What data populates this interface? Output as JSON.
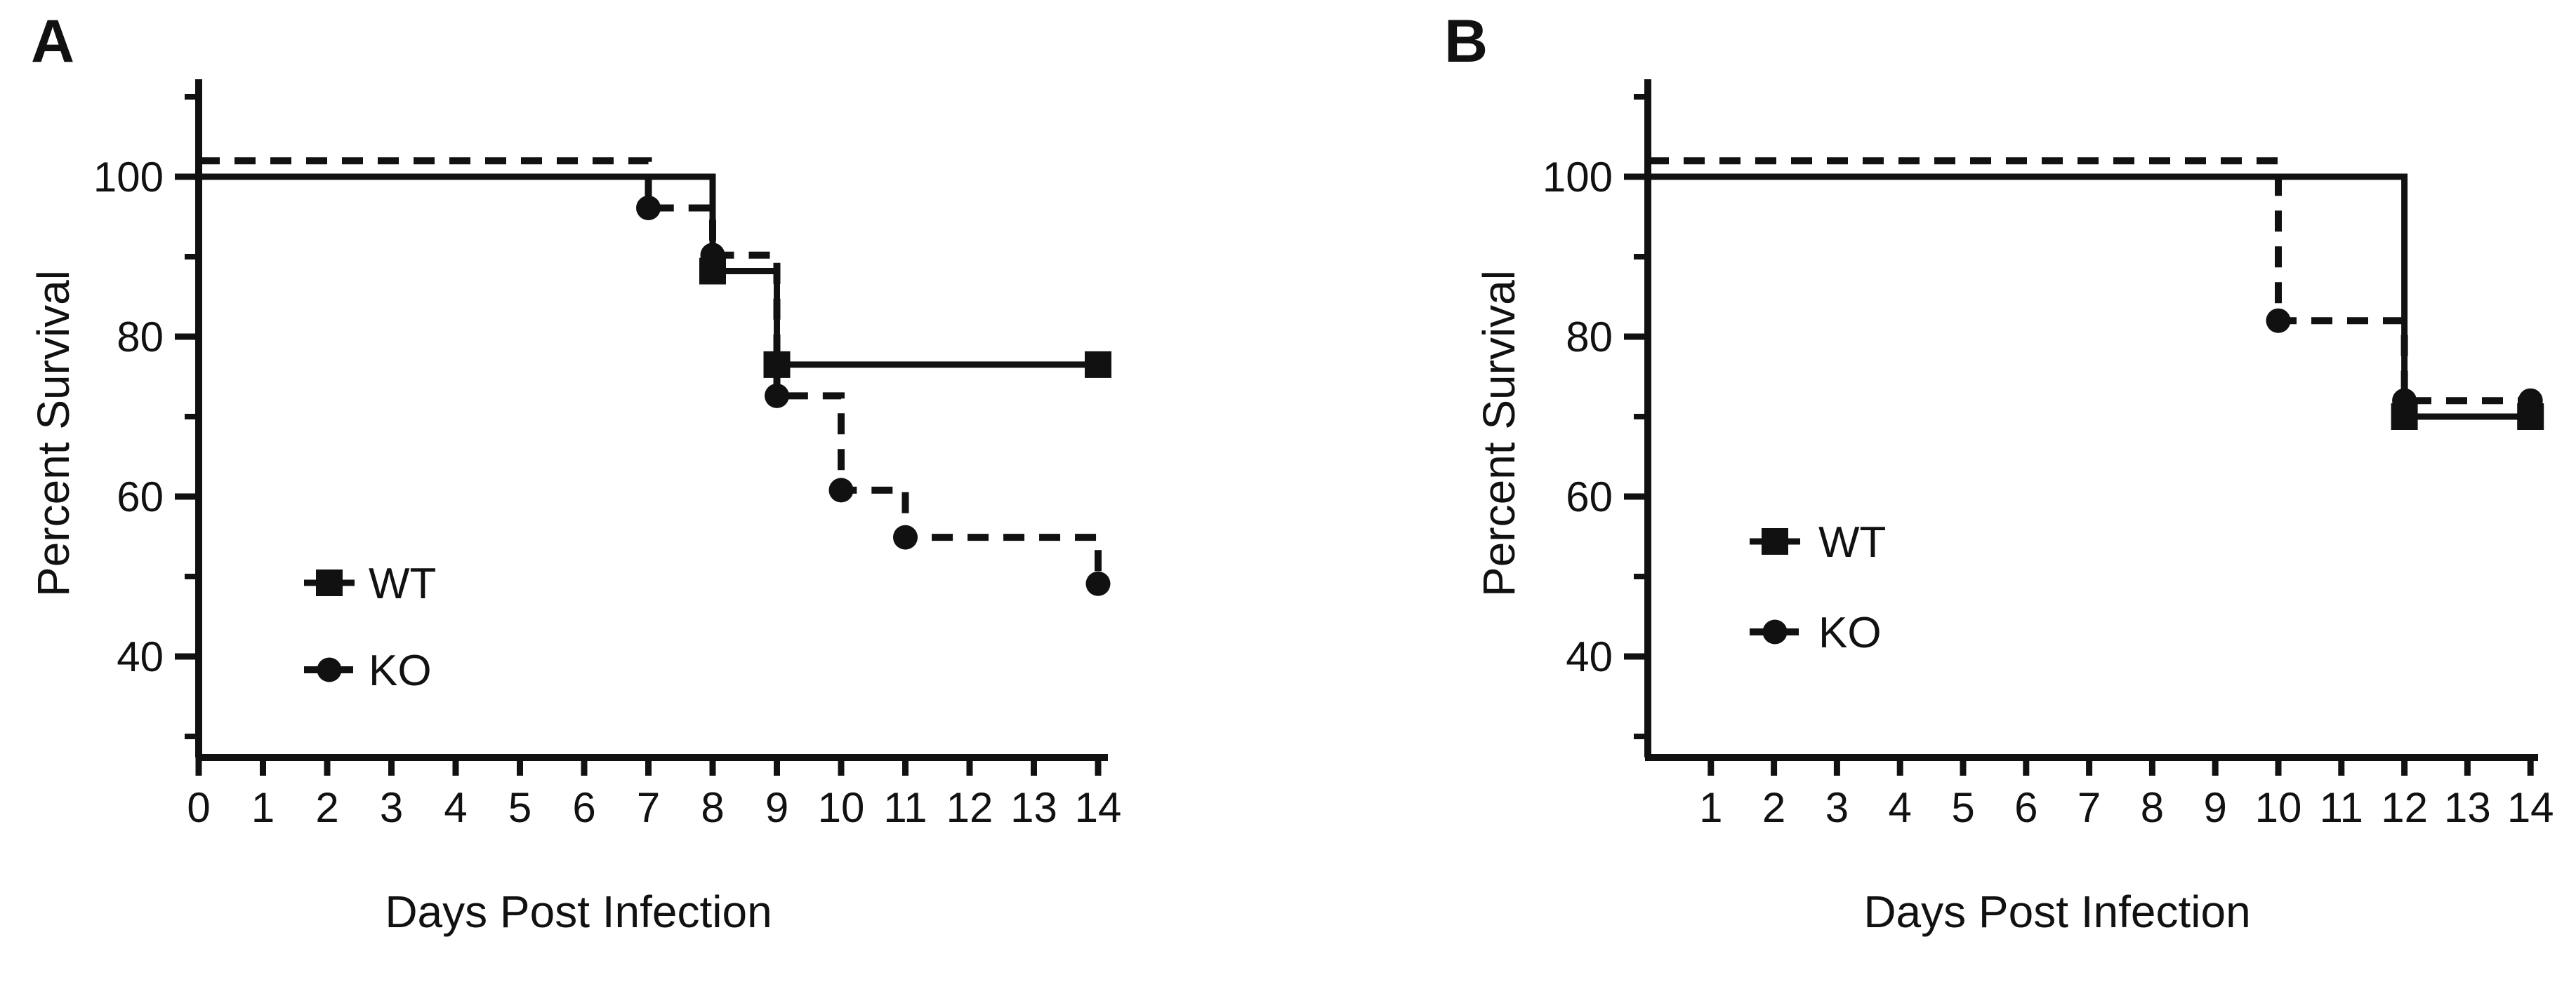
{
  "chart_data": [
    {
      "type": "line",
      "subtype": "kaplan_meier_survival_step",
      "panel_label": "A",
      "xlabel": "Days Post Infection",
      "ylabel": "Percent Survival",
      "xlim": [
        0,
        14.3
      ],
      "ylim": [
        27,
        112
      ],
      "grid": false,
      "legend_position": "inside-lower-left",
      "xticks": [
        0,
        1,
        2,
        3,
        4,
        5,
        6,
        7,
        8,
        9,
        10,
        11,
        12,
        13,
        14
      ],
      "xtick_labels": [
        "0",
        "1",
        "2",
        "3",
        "4",
        "5",
        "6",
        "7",
        "8",
        "9",
        "10",
        "11",
        "12",
        "13",
        "14"
      ],
      "ytick_major": [
        40,
        60,
        80,
        100
      ],
      "ytick_labels": [
        "40",
        "60",
        "80",
        "100"
      ],
      "ytick_minor": [
        30,
        50,
        70,
        90,
        110
      ],
      "series": [
        {
          "name": "WT",
          "line_style": "solid",
          "marker": "square",
          "color": "#111111",
          "draw_offset": 0,
          "steps": [
            [
              0,
              100
            ],
            [
              8,
              100
            ],
            [
              8,
              88.2
            ],
            [
              9,
              88.2
            ],
            [
              9,
              76.5
            ],
            [
              14,
              76.5
            ]
          ],
          "markers_at": [
            [
              8,
              88.2
            ],
            [
              9,
              76.5
            ],
            [
              14,
              76.5
            ]
          ]
        },
        {
          "name": "KO",
          "line_style": "dashed",
          "marker": "circle",
          "color": "#111111",
          "draw_offset": 2,
          "steps": [
            [
              0,
              100
            ],
            [
              7,
              100
            ],
            [
              7,
              94.1
            ],
            [
              8,
              94.1
            ],
            [
              8,
              88.2
            ],
            [
              9,
              88.2
            ],
            [
              9,
              70.6
            ],
            [
              10,
              70.6
            ],
            [
              10,
              58.8
            ],
            [
              11,
              58.8
            ],
            [
              11,
              52.9
            ],
            [
              14,
              52.9
            ],
            [
              14,
              47.1
            ]
          ],
          "markers_at": [
            [
              7,
              94.1
            ],
            [
              8,
              88.2
            ],
            [
              9,
              70.6
            ],
            [
              10,
              58.8
            ],
            [
              11,
              52.9
            ],
            [
              14,
              47.1
            ]
          ]
        }
      ]
    },
    {
      "type": "line",
      "subtype": "kaplan_meier_survival_step",
      "panel_label": "B",
      "xlabel": "Days Post Infection",
      "ylabel": "Percent Survival",
      "xlim": [
        0,
        14.2
      ],
      "ylim": [
        27,
        112
      ],
      "grid": false,
      "legend_position": "inside-lower-left",
      "xticks": [
        1,
        2,
        3,
        4,
        5,
        6,
        7,
        8,
        9,
        10,
        11,
        12,
        13,
        14
      ],
      "xtick_labels": [
        "1",
        "2",
        "3",
        "4",
        "5",
        "6",
        "7",
        "8",
        "9",
        "10",
        "11",
        "12",
        "13",
        "14"
      ],
      "ytick_major": [
        40,
        60,
        80,
        100
      ],
      "ytick_labels": [
        "40",
        "60",
        "80",
        "100"
      ],
      "ytick_minor": [
        30,
        50,
        70,
        90,
        110
      ],
      "series": [
        {
          "name": "WT",
          "line_style": "solid",
          "marker": "square",
          "color": "#111111",
          "draw_offset": 0,
          "steps": [
            [
              0,
              100
            ],
            [
              12,
              100
            ],
            [
              12,
              70
            ],
            [
              14,
              70
            ]
          ],
          "markers_at": [
            [
              12,
              70
            ],
            [
              14,
              70
            ]
          ]
        },
        {
          "name": "KO",
          "line_style": "dashed",
          "marker": "circle",
          "color": "#111111",
          "draw_offset": 2,
          "steps": [
            [
              0,
              100
            ],
            [
              10,
              100
            ],
            [
              10,
              80
            ],
            [
              12,
              80
            ],
            [
              12,
              70
            ],
            [
              14,
              70
            ]
          ],
          "markers_at": [
            [
              10,
              80
            ],
            [
              12,
              70
            ],
            [
              14,
              70
            ]
          ]
        }
      ]
    }
  ]
}
